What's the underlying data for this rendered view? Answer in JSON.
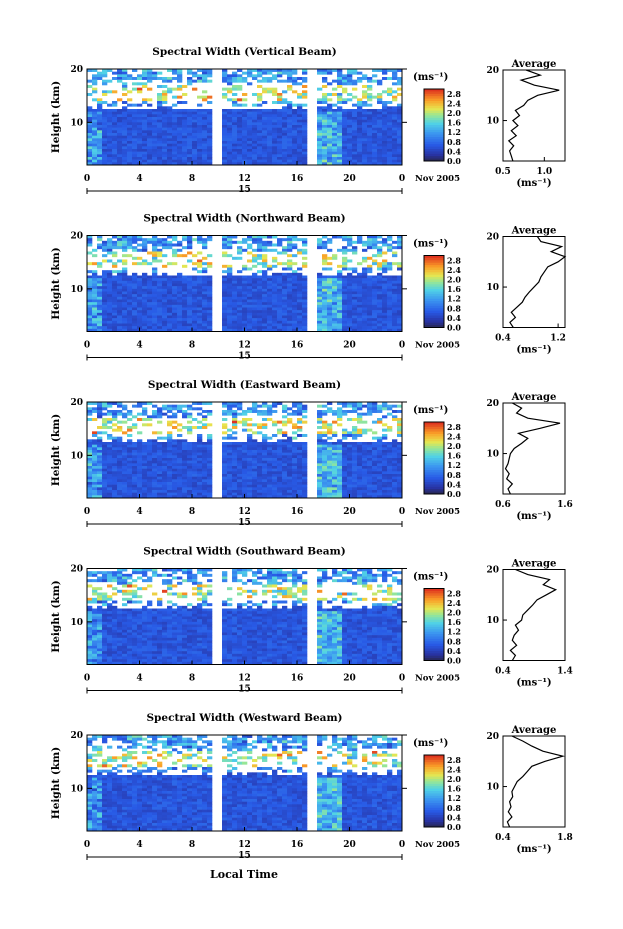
{
  "chart_data": {
    "type": "heatmap",
    "x_axis_label": "Local Time",
    "date_label": "Nov 2005",
    "day_label": "15",
    "colorbar": {
      "unit": "(ms⁻¹)",
      "ticks": [
        "2.8",
        "2.4",
        "2.0",
        "1.6",
        "1.2",
        "0.8",
        "0.4",
        "0.0"
      ],
      "range": [
        0.0,
        3.0
      ]
    },
    "x_ticks": [
      "0",
      "4",
      "8",
      "12",
      "16",
      "20",
      "0"
    ],
    "x_range_hours": [
      0,
      24
    ],
    "data_gaps_hours": [
      [
        9.6,
        10.4
      ],
      [
        16.6,
        17.4
      ]
    ],
    "panels": [
      {
        "title": "Spectral Width (Vertical Beam)",
        "ylabel": "Height (km)",
        "y_ticks": [
          "20",
          "10"
        ],
        "ylim": [
          2,
          20
        ],
        "avg_title": "Average",
        "avg_xlabel": "(ms⁻¹)",
        "avg_x_ticks": [
          "0.5",
          "1.0"
        ],
        "avg_xlim": [
          0.5,
          1.25
        ],
        "avg_profile": [
          [
            2,
            0.62
          ],
          [
            3,
            0.6
          ],
          [
            4,
            0.58
          ],
          [
            5,
            0.63
          ],
          [
            6,
            0.57
          ],
          [
            7,
            0.66
          ],
          [
            8,
            0.6
          ],
          [
            9,
            0.68
          ],
          [
            10,
            0.62
          ],
          [
            11,
            0.7
          ],
          [
            12,
            0.65
          ],
          [
            13,
            0.75
          ],
          [
            14,
            0.8
          ],
          [
            15,
            0.92
          ],
          [
            16,
            1.18
          ],
          [
            17,
            0.88
          ],
          [
            18,
            0.72
          ],
          [
            19,
            0.95
          ],
          [
            20,
            0.78
          ]
        ]
      },
      {
        "title": "Spectral Width (Northward Beam)",
        "ylabel": "Height (km)",
        "y_ticks": [
          "20",
          "10"
        ],
        "ylim": [
          2,
          20
        ],
        "avg_title": "Average",
        "avg_xlabel": "(ms⁻¹)",
        "avg_x_ticks": [
          "0.4",
          "1.2"
        ],
        "avg_xlim": [
          0.4,
          1.3
        ],
        "avg_profile": [
          [
            2,
            0.55
          ],
          [
            3,
            0.5
          ],
          [
            4,
            0.58
          ],
          [
            5,
            0.52
          ],
          [
            6,
            0.6
          ],
          [
            7,
            0.68
          ],
          [
            8,
            0.72
          ],
          [
            9,
            0.78
          ],
          [
            10,
            0.85
          ],
          [
            11,
            0.92
          ],
          [
            12,
            0.95
          ],
          [
            13,
            1.0
          ],
          [
            14,
            1.05
          ],
          [
            15,
            1.2
          ],
          [
            16,
            1.3
          ],
          [
            17,
            1.1
          ],
          [
            18,
            1.25
          ],
          [
            19,
            0.95
          ],
          [
            20,
            0.9
          ]
        ]
      },
      {
        "title": "Spectral Width (Eastward Beam)",
        "ylabel": "Height (km)",
        "y_ticks": [
          "20",
          "10"
        ],
        "ylim": [
          2,
          20
        ],
        "avg_title": "Average",
        "avg_xlabel": "(ms⁻¹)",
        "avg_x_ticks": [
          "0.6",
          "1.6"
        ],
        "avg_xlim": [
          0.6,
          1.6
        ],
        "avg_profile": [
          [
            2,
            0.72
          ],
          [
            3,
            0.68
          ],
          [
            4,
            0.75
          ],
          [
            5,
            0.66
          ],
          [
            6,
            0.7
          ],
          [
            7,
            0.64
          ],
          [
            8,
            0.68
          ],
          [
            9,
            0.7
          ],
          [
            10,
            0.72
          ],
          [
            11,
            0.78
          ],
          [
            12,
            0.9
          ],
          [
            13,
            1.0
          ],
          [
            14,
            0.85
          ],
          [
            15,
            1.2
          ],
          [
            16,
            1.52
          ],
          [
            17,
            1.0
          ],
          [
            18,
            0.82
          ],
          [
            19,
            0.9
          ],
          [
            20,
            0.75
          ]
        ]
      },
      {
        "title": "Spectral Width (Southward Beam)",
        "ylabel": "Height (km)",
        "y_ticks": [
          "20",
          "10"
        ],
        "ylim": [
          2,
          20
        ],
        "avg_title": "Average",
        "avg_xlabel": "(ms⁻¹)",
        "avg_x_ticks": [
          "0.4",
          "1.4"
        ],
        "avg_xlim": [
          0.4,
          1.4
        ],
        "avg_profile": [
          [
            2,
            0.55
          ],
          [
            3,
            0.6
          ],
          [
            4,
            0.52
          ],
          [
            5,
            0.62
          ],
          [
            6,
            0.55
          ],
          [
            7,
            0.58
          ],
          [
            8,
            0.65
          ],
          [
            9,
            0.6
          ],
          [
            10,
            0.7
          ],
          [
            11,
            0.72
          ],
          [
            12,
            0.8
          ],
          [
            13,
            0.88
          ],
          [
            14,
            0.95
          ],
          [
            15,
            1.1
          ],
          [
            16,
            1.25
          ],
          [
            17,
            1.05
          ],
          [
            18,
            1.15
          ],
          [
            19,
            0.8
          ],
          [
            20,
            0.6
          ]
        ]
      },
      {
        "title": "Spectral Width (Westward Beam)",
        "ylabel": "Height (km)",
        "y_ticks": [
          "20",
          "10"
        ],
        "ylim": [
          2,
          20
        ],
        "avg_title": "Average",
        "avg_xlabel": "(ms⁻¹)",
        "avg_x_ticks": [
          "0.4",
          "1.8"
        ],
        "avg_xlim": [
          0.4,
          1.8
        ],
        "avg_profile": [
          [
            2,
            0.55
          ],
          [
            3,
            0.5
          ],
          [
            4,
            0.6
          ],
          [
            5,
            0.52
          ],
          [
            6,
            0.58
          ],
          [
            7,
            0.55
          ],
          [
            8,
            0.62
          ],
          [
            9,
            0.6
          ],
          [
            10,
            0.66
          ],
          [
            11,
            0.72
          ],
          [
            12,
            0.85
          ],
          [
            13,
            0.95
          ],
          [
            14,
            1.05
          ],
          [
            15,
            1.35
          ],
          [
            16,
            1.75
          ],
          [
            17,
            1.3
          ],
          [
            18,
            1.05
          ],
          [
            19,
            0.85
          ],
          [
            20,
            0.6
          ]
        ]
      }
    ]
  }
}
